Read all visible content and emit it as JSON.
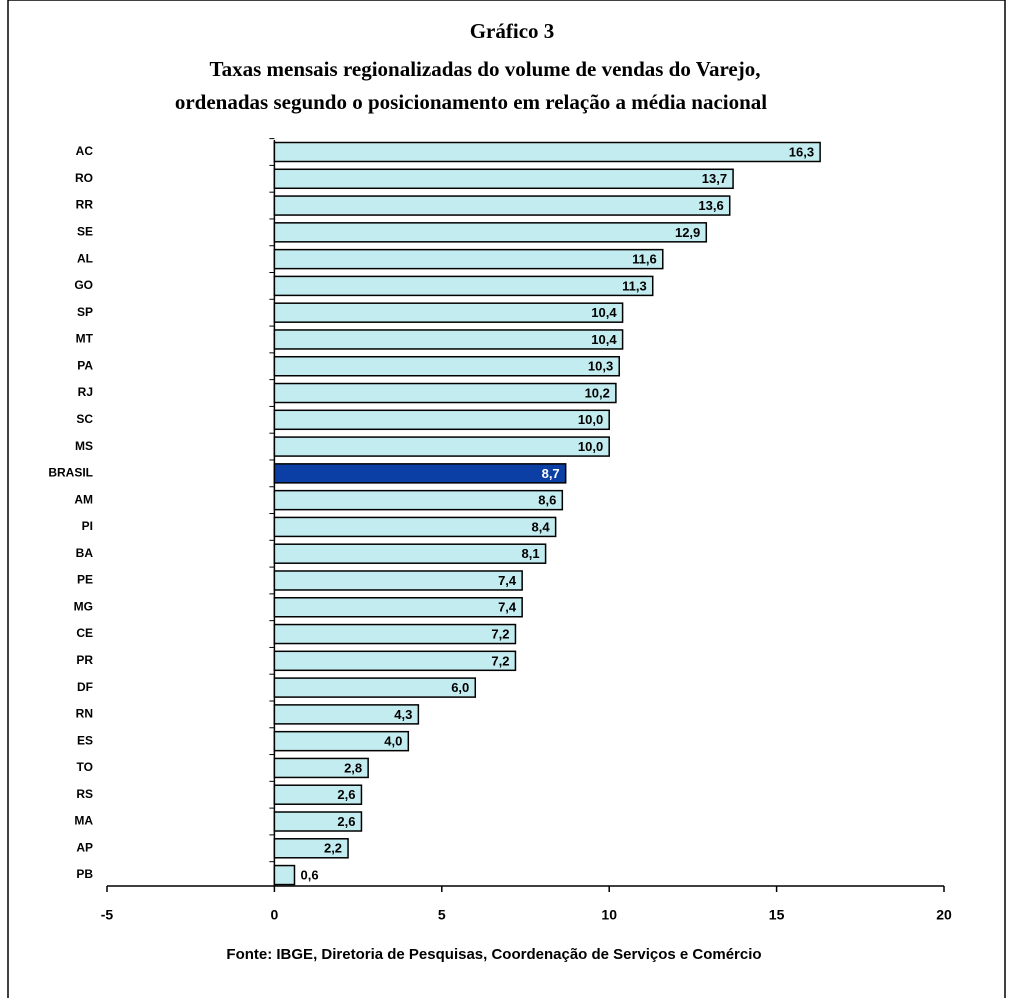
{
  "chart_data": {
    "type": "hbar",
    "title": "Gráfico 3",
    "subtitle": [
      "Taxas mensais regionalizadas  do volume de vendas do Varejo,",
      "ordenadas segundo o posicionamento em relação a média nacional"
    ],
    "categories": [
      "AC",
      "RO",
      "RR",
      "SE",
      "AL",
      "GO",
      "SP",
      "MT",
      "PA",
      "RJ",
      "SC",
      "MS",
      "BRASIL",
      "AM",
      "PI",
      "BA",
      "PE",
      "MG",
      "CE",
      "PR",
      "DF",
      "RN",
      "ES",
      "TO",
      "RS",
      "MA",
      "AP",
      "PB"
    ],
    "values": [
      16.3,
      13.7,
      13.6,
      12.9,
      11.6,
      11.3,
      10.4,
      10.4,
      10.3,
      10.2,
      10.0,
      10.0,
      8.7,
      8.6,
      8.4,
      8.1,
      7.4,
      7.4,
      7.2,
      7.2,
      6.0,
      4.3,
      4.0,
      2.8,
      2.6,
      2.6,
      2.2,
      0.6
    ],
    "value_labels": [
      "16,3",
      "13,7",
      "13,6",
      "12,9",
      "11,6",
      "11,3",
      "10,4",
      "10,4",
      "10,3",
      "10,2",
      "10,0",
      "10,0",
      "8,7",
      "8,6",
      "8,4",
      "8,1",
      "7,4",
      "7,4",
      "7,2",
      "7,2",
      "6,0",
      "4,3",
      "4,0",
      "2,8",
      "2,6",
      "2,6",
      "2,2",
      "0,6"
    ],
    "colors": [
      "#c2ecf0",
      "#c2ecf0",
      "#c2ecf0",
      "#c2ecf0",
      "#c2ecf0",
      "#c2ecf0",
      "#c2ecf0",
      "#c2ecf0",
      "#c2ecf0",
      "#c2ecf0",
      "#c2ecf0",
      "#c2ecf0",
      "#0b3fa6",
      "#c2ecf0",
      "#c2ecf0",
      "#c2ecf0",
      "#c2ecf0",
      "#c2ecf0",
      "#c2ecf0",
      "#c2ecf0",
      "#c2ecf0",
      "#c2ecf0",
      "#c2ecf0",
      "#c2ecf0",
      "#c2ecf0",
      "#c2ecf0",
      "#c2ecf0",
      "#c2ecf0"
    ],
    "xlim": [
      -5,
      20
    ],
    "xticks": [
      -5,
      0,
      5,
      10,
      15,
      20
    ],
    "source": "Fonte: IBGE, Diretoria de Pesquisas, Coordenação de Serviços e Comércio"
  }
}
